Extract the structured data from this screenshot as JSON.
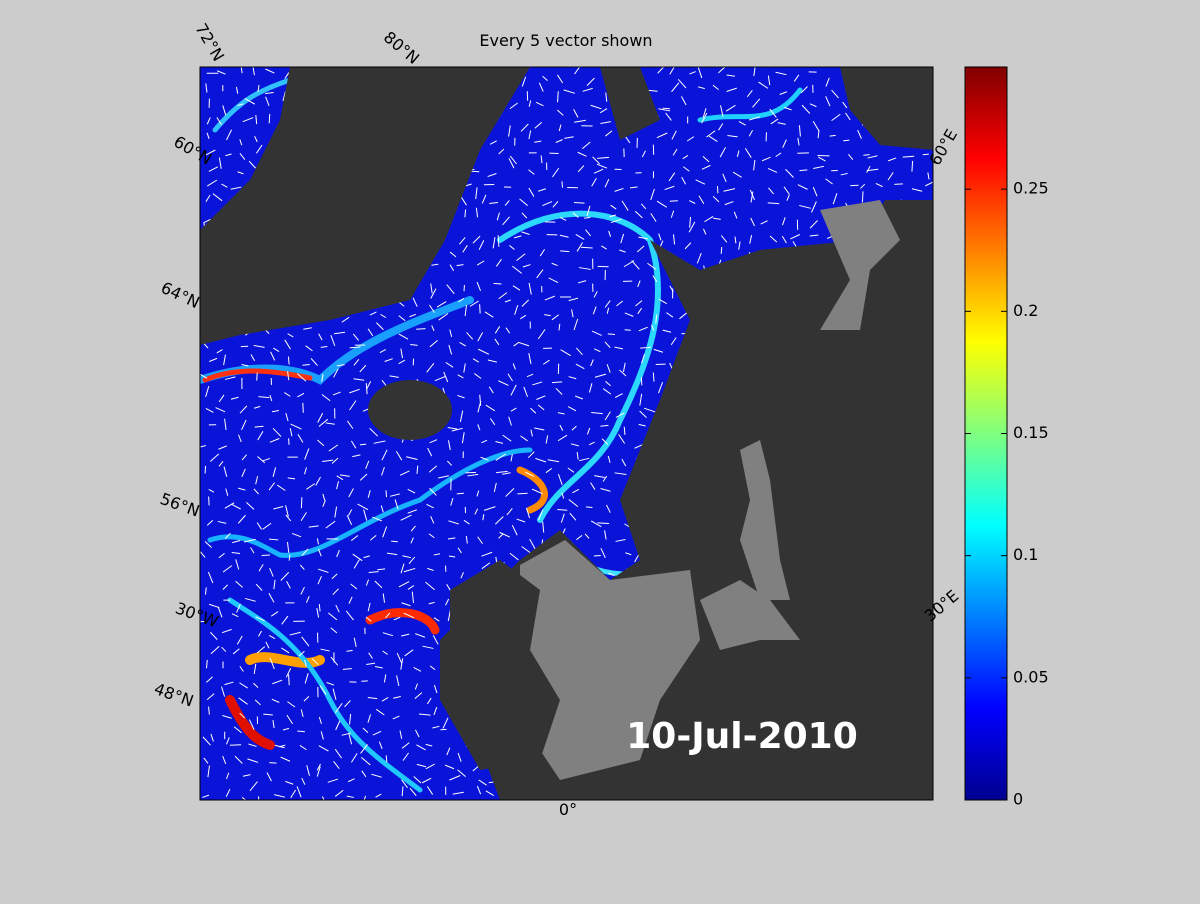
{
  "map": {
    "title": "Every 5 vector shown",
    "date": "10-Jul-2010",
    "graticule_labels": [
      "72°N",
      "80°N",
      "60°N",
      "64°N",
      "56°N",
      "30°W",
      "48°N",
      "0°",
      "60°E",
      "30°E"
    ]
  },
  "colorbar": {
    "lim": [
      0,
      0.3
    ],
    "ticks": [
      0,
      0.05,
      0.1,
      0.15,
      0.2,
      0.25
    ],
    "colormap": "jet"
  }
}
